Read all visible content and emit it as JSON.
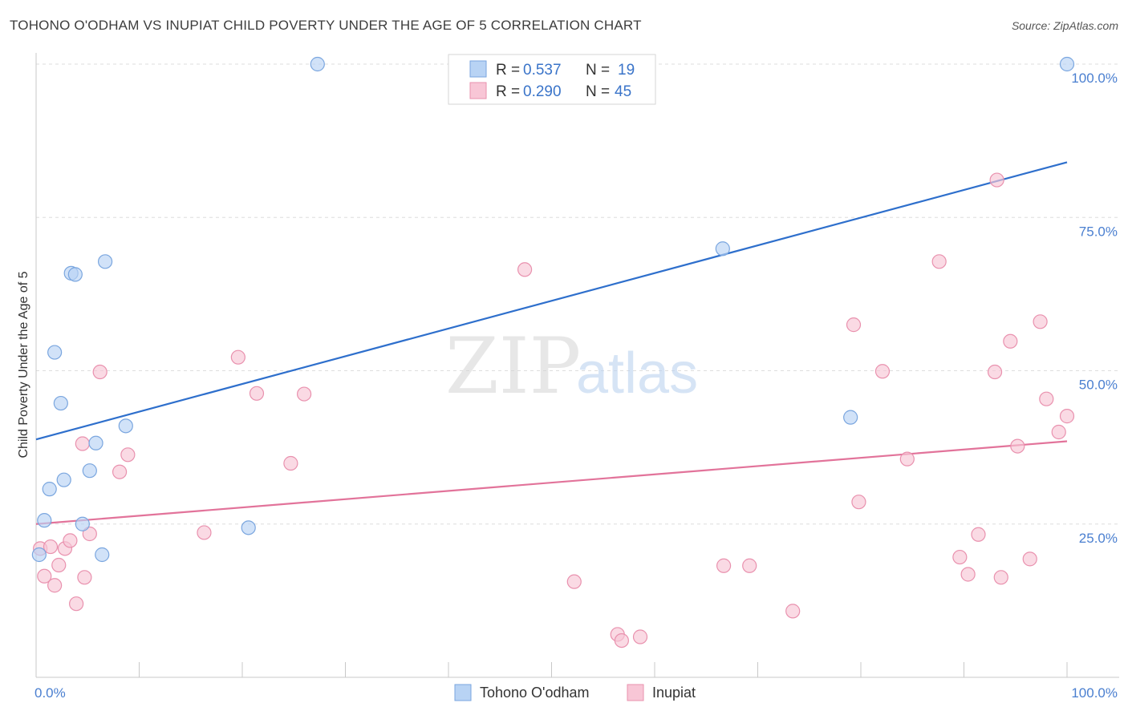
{
  "title": "TOHONO O'ODHAM VS INUPIAT CHILD POVERTY UNDER THE AGE OF 5 CORRELATION CHART",
  "source": "Source: ZipAtlas.com",
  "watermark": {
    "zip": "ZIP",
    "atlas": "atlas"
  },
  "colors": {
    "tohono_fill": "#b8d3f4",
    "tohono_stroke": "#7aa6df",
    "tohono_line": "#2e6fcc",
    "inupiat_fill": "#f8c6d6",
    "inupiat_stroke": "#e991ae",
    "inupiat_line": "#e2739a",
    "value_text": "#3a74c9",
    "grid": "#dddddd"
  },
  "legend": {
    "rows": [
      {
        "r_label": "R =",
        "r_value": "0.537",
        "n_label": "N =",
        "n_value": "19"
      },
      {
        "r_label": "R =",
        "r_value": "0.290",
        "n_label": "N =",
        "n_value": "45"
      }
    ]
  },
  "chart_data": {
    "type": "scatter",
    "title": "TOHONO O'ODHAM VS INUPIAT CHILD POVERTY UNDER THE AGE OF 5 CORRELATION CHART",
    "xlabel": "",
    "ylabel": "Child Poverty Under the Age of 5",
    "xlim": [
      0,
      100
    ],
    "ylim": [
      0,
      100
    ],
    "x_tick_labels": [
      "0.0%",
      "100.0%"
    ],
    "y_ticks": [
      25,
      50,
      75,
      100
    ],
    "y_tick_labels": [
      "25.0%",
      "50.0%",
      "75.0%",
      "100.0%"
    ],
    "grid": true,
    "legend_position": "top-center",
    "series": [
      {
        "name": "Tohono O'odham",
        "r": 0.537,
        "n": 19,
        "trend": {
          "x": [
            0,
            100
          ],
          "y": [
            38.8,
            84
          ]
        },
        "points": [
          [
            0.3,
            20.0
          ],
          [
            0.8,
            25.6
          ],
          [
            1.3,
            30.7
          ],
          [
            1.8,
            53.0
          ],
          [
            2.4,
            44.7
          ],
          [
            2.7,
            32.2
          ],
          [
            3.4,
            65.9
          ],
          [
            3.8,
            65.7
          ],
          [
            4.5,
            25.0
          ],
          [
            5.2,
            33.7
          ],
          [
            5.8,
            38.2
          ],
          [
            6.4,
            20.0
          ],
          [
            6.7,
            67.8
          ],
          [
            8.7,
            41.0
          ],
          [
            20.6,
            24.4
          ],
          [
            27.3,
            100.0
          ],
          [
            66.6,
            69.9
          ],
          [
            79.0,
            42.4
          ],
          [
            100.0,
            100.0
          ]
        ]
      },
      {
        "name": "Inupiat",
        "r": 0.29,
        "n": 45,
        "trend": {
          "x": [
            0,
            100
          ],
          "y": [
            25.0,
            38.5
          ]
        },
        "points": [
          [
            0.4,
            21.0
          ],
          [
            0.8,
            16.5
          ],
          [
            1.4,
            21.3
          ],
          [
            1.8,
            15.0
          ],
          [
            2.2,
            18.3
          ],
          [
            2.8,
            21.0
          ],
          [
            3.3,
            22.3
          ],
          [
            3.9,
            12.0
          ],
          [
            4.5,
            38.1
          ],
          [
            4.7,
            16.3
          ],
          [
            5.2,
            23.4
          ],
          [
            6.2,
            49.8
          ],
          [
            8.1,
            33.5
          ],
          [
            8.9,
            36.3
          ],
          [
            16.3,
            23.6
          ],
          [
            19.6,
            52.2
          ],
          [
            21.4,
            46.3
          ],
          [
            24.7,
            34.9
          ],
          [
            26.0,
            46.2
          ],
          [
            47.4,
            66.5
          ],
          [
            52.2,
            15.6
          ],
          [
            56.4,
            7.0
          ],
          [
            56.8,
            6.0
          ],
          [
            58.6,
            6.6
          ],
          [
            66.7,
            18.2
          ],
          [
            69.2,
            18.2
          ],
          [
            73.4,
            10.8
          ],
          [
            79.3,
            57.5
          ],
          [
            79.8,
            28.6
          ],
          [
            82.1,
            49.9
          ],
          [
            84.5,
            35.6
          ],
          [
            87.6,
            67.8
          ],
          [
            89.6,
            19.6
          ],
          [
            90.4,
            16.8
          ],
          [
            91.4,
            23.3
          ],
          [
            93.0,
            49.8
          ],
          [
            93.2,
            81.1
          ],
          [
            93.6,
            16.3
          ],
          [
            94.5,
            54.8
          ],
          [
            95.2,
            37.7
          ],
          [
            96.4,
            19.3
          ],
          [
            97.4,
            58.0
          ],
          [
            98.0,
            45.4
          ],
          [
            99.2,
            40.0
          ],
          [
            100.0,
            42.6
          ]
        ]
      }
    ]
  },
  "bottom_legend": {
    "items": [
      {
        "label": "Tohono O'odham"
      },
      {
        "label": "Inupiat"
      }
    ]
  }
}
